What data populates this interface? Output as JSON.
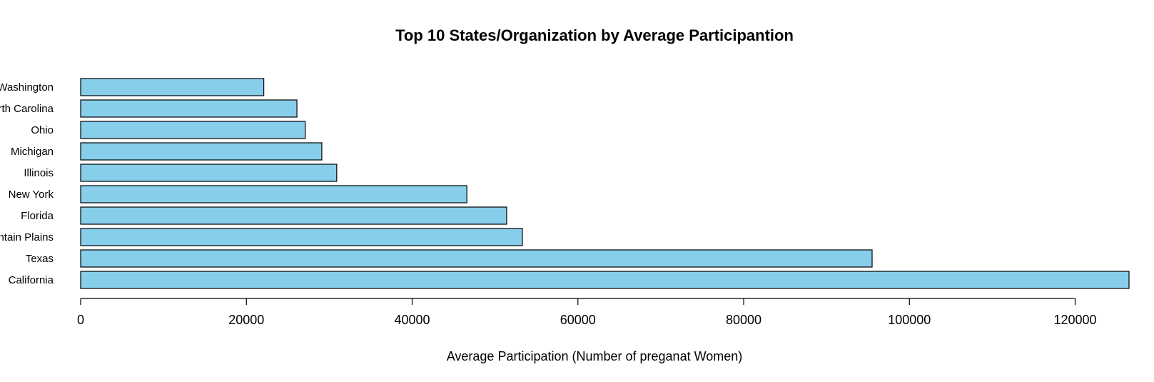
{
  "chart_data": {
    "type": "bar",
    "orientation": "horizontal",
    "title": "Top 10 States/Organization by Average Participantion",
    "xlabel": "Average Participation (Number of preganat Women)",
    "ylabel": "",
    "categories": [
      "California",
      "Texas",
      "Mountain Plains",
      "Florida",
      "New York",
      "Illinois",
      "Michigan",
      "Ohio",
      "North Carolina",
      "Washington"
    ],
    "values": [
      126500,
      95500,
      53300,
      51400,
      46600,
      30900,
      29100,
      27100,
      26100,
      22100
    ],
    "xlim": [
      0,
      126500
    ],
    "xticks": [
      0,
      20000,
      40000,
      60000,
      80000,
      100000,
      120000
    ],
    "xtick_labels": [
      "0",
      "20000",
      "40000",
      "60000",
      "80000",
      "100000",
      "120000"
    ],
    "bar_color": "#87CEEB",
    "bar_edge_color": "#000000",
    "grid": false,
    "legend": "none"
  }
}
